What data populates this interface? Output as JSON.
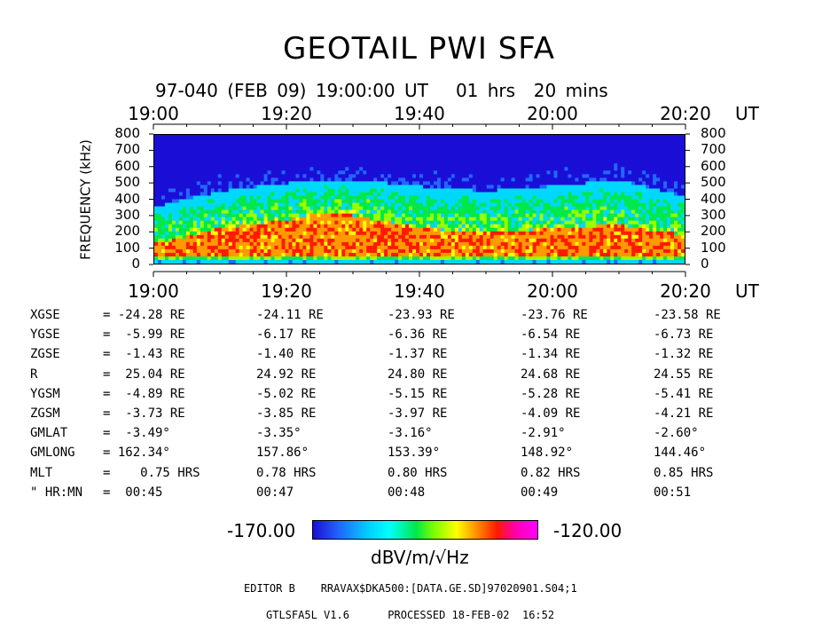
{
  "title": "GEOTAIL PWI SFA",
  "subtitle": "97-040 (FEB 09) 19:00:00 UT   01 hrs  20 mins",
  "time_axis": {
    "ticks": [
      "19:00",
      "19:20",
      "19:40",
      "20:00",
      "20:20"
    ],
    "unit": "UT"
  },
  "freq_axis": {
    "label": "FREQUENCY (kHz)",
    "ticks": [
      "800",
      "700",
      "600",
      "500",
      "400",
      "300",
      "200",
      "100",
      "0"
    ]
  },
  "ephemeris": [
    {
      "label": "XGSE",
      "values": [
        "= -24.28 RE",
        "-24.11 RE",
        "-23.93 RE",
        "-23.76 RE",
        "-23.58 RE"
      ]
    },
    {
      "label": "YGSE",
      "values": [
        "=  -5.99 RE",
        "-6.17 RE",
        "-6.36 RE",
        "-6.54 RE",
        "-6.73 RE"
      ]
    },
    {
      "label": "ZGSE",
      "values": [
        "=  -1.43 RE",
        "-1.40 RE",
        "-1.37 RE",
        "-1.34 RE",
        "-1.32 RE"
      ]
    },
    {
      "label": "R",
      "values": [
        "=  25.04 RE",
        "24.92 RE",
        "24.80 RE",
        "24.68 RE",
        "24.55 RE"
      ]
    },
    {
      "label": "YGSM",
      "values": [
        "=  -4.89 RE",
        "-5.02 RE",
        "-5.15 RE",
        "-5.28 RE",
        "-5.41 RE"
      ]
    },
    {
      "label": "ZGSM",
      "values": [
        "=  -3.73 RE",
        "-3.85 RE",
        "-3.97 RE",
        "-4.09 RE",
        "-4.21 RE"
      ]
    },
    {
      "label": "GMLAT",
      "values": [
        "=  -3.49°",
        "-3.35°",
        "-3.16°",
        "-2.91°",
        "-2.60°"
      ]
    },
    {
      "label": "GMLONG",
      "values": [
        "= 162.34°",
        "157.86°",
        "153.39°",
        "148.92°",
        "144.46°"
      ]
    },
    {
      "label": "MLT",
      "values": [
        "=    0.75 HRS",
        "0.78 HRS",
        "0.80 HRS",
        "0.82 HRS",
        "0.85 HRS"
      ]
    },
    {
      "label": "\" HR:MN",
      "values": [
        "=  00:45",
        "00:47",
        "00:48",
        "00:49",
        "00:51"
      ]
    }
  ],
  "colorbar": {
    "min_label": "-170.00",
    "max_label": "-120.00",
    "unit": "dBV/m/√Hz"
  },
  "footer": {
    "line1": "EDITOR B    RRAVAX$DKA500:[DATA.GE.SD]97020901.S04;1",
    "line2": "GTLSFA5L V1.6      PROCESSED 18-FEB-02  16:52"
  },
  "chart_data": {
    "type": "heatmap",
    "title": "GEOTAIL PWI SFA",
    "xlabel": "UT",
    "ylabel": "FREQUENCY (kHz)",
    "x_ticks": [
      "19:00",
      "19:20",
      "19:40",
      "20:00",
      "20:20"
    ],
    "xlim": [
      "19:00",
      "20:20"
    ],
    "ylim": [
      0,
      800
    ],
    "colorscale": {
      "min": -170.0,
      "max": -120.0,
      "unit": "dBV/m/√Hz"
    },
    "intense_band_upper_kHz": {
      "x": [
        "19:00",
        "19:10",
        "19:20",
        "19:26",
        "19:30",
        "19:40",
        "19:50",
        "20:00",
        "20:10",
        "20:20"
      ],
      "y": [
        120,
        220,
        270,
        320,
        300,
        220,
        190,
        220,
        240,
        180
      ]
    },
    "moderate_band_upper_kHz": {
      "x": [
        "19:00",
        "19:10",
        "19:20",
        "19:30",
        "19:40",
        "19:50",
        "20:00",
        "20:10",
        "20:20"
      ],
      "y": [
        350,
        450,
        500,
        520,
        480,
        450,
        480,
        520,
        420
      ]
    }
  }
}
